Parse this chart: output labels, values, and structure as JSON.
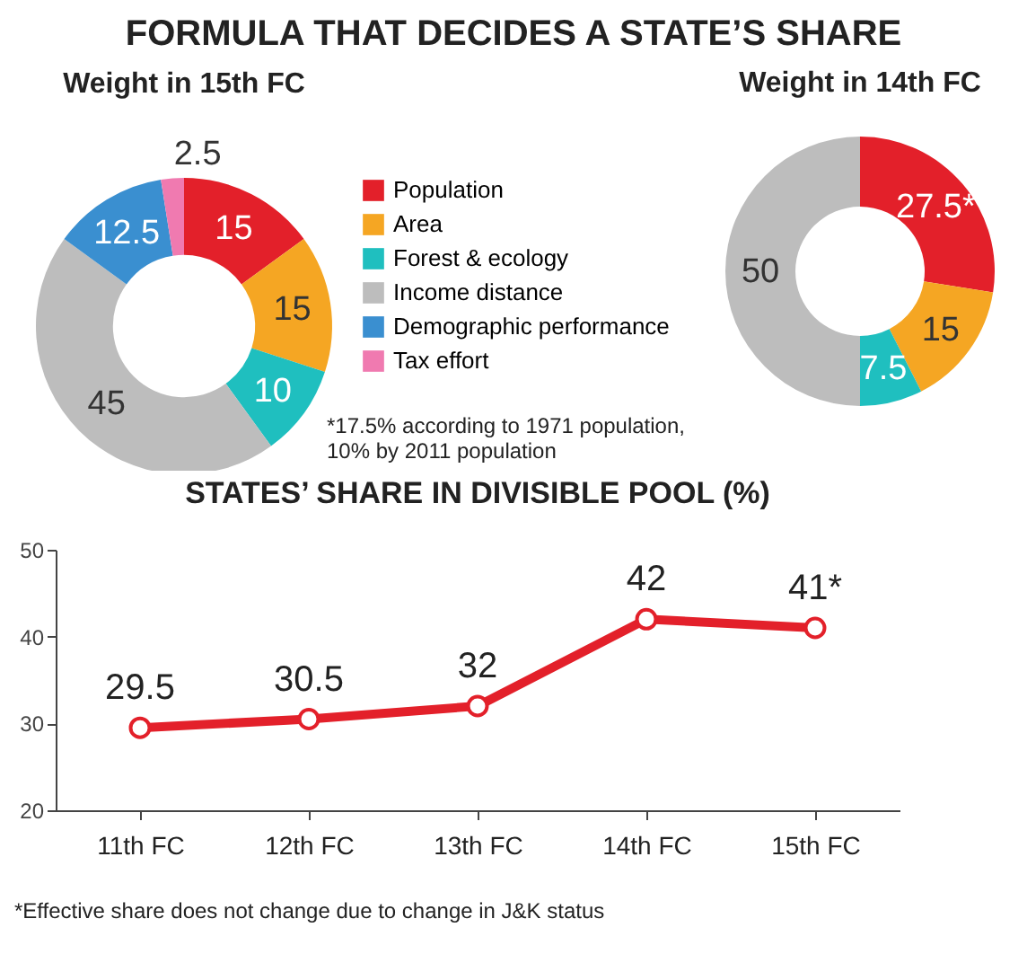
{
  "chart_data": [
    {
      "type": "donut",
      "title": "FORMULA THAT DECIDES A STATE’S SHARE",
      "subtitle": "Weight in 15th FC",
      "categories": [
        "Population",
        "Area",
        "Forest & ecology",
        "Income distance",
        "Demographic performance",
        "Tax effort"
      ],
      "values": [
        15,
        15,
        10,
        45,
        12.5,
        2.5
      ],
      "colors": [
        "#e3202a",
        "#f5a623",
        "#1fbfbf",
        "#bdbdbd",
        "#3a8fd0",
        "#f07ab0"
      ],
      "data_labels": true,
      "legend": "right"
    },
    {
      "type": "donut",
      "title": "Weight in 14th FC",
      "categories": [
        null,
        null,
        null,
        null
      ],
      "values": [
        27.5,
        15,
        7.5,
        50
      ],
      "colors": [
        "#e3202a",
        "#f5a623",
        "#1fbfbf",
        "#bdbdbd"
      ],
      "value_labels": [
        "27.5*",
        "15",
        "7.5",
        "50"
      ],
      "annotations": [
        "*17.5% according to 1971 population, 10% by 2011 population"
      ]
    },
    {
      "type": "line",
      "title": "STATES’ SHARE IN DIVISIBLE POOL (%)",
      "categories": [
        "11th FC",
        "12th FC",
        "13th FC",
        "14th FC",
        "15th FC"
      ],
      "series": [
        {
          "color": "#e3202a",
          "values": [
            29.5,
            30.5,
            32,
            42,
            41
          ]
        }
      ],
      "value_labels": [
        "29.5",
        "30.5",
        "32",
        "42",
        "41*"
      ],
      "ylim": [
        20,
        50
      ],
      "yticks": [
        20,
        30,
        40,
        50
      ],
      "marker": "circle",
      "annotations": [
        "*Effective share does not change due to change in J&K status"
      ]
    }
  ]
}
